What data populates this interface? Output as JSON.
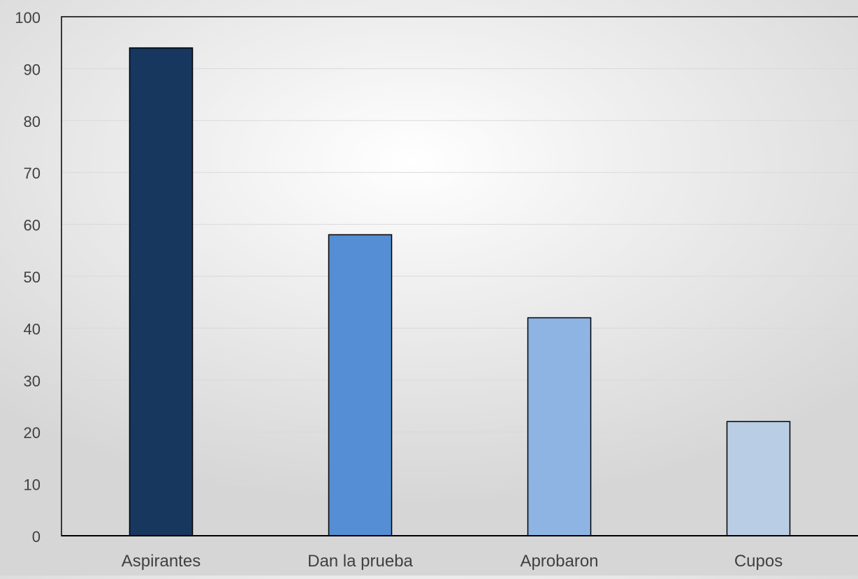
{
  "chart_data": {
    "type": "bar",
    "categories": [
      "Aspirantes",
      "Dan la prueba",
      "Aprobaron",
      "Cupos"
    ],
    "values": [
      94,
      58,
      42,
      22
    ],
    "ylim": [
      0,
      100
    ],
    "yticks": [
      0,
      10,
      20,
      30,
      40,
      50,
      60,
      70,
      80,
      90,
      100
    ],
    "grid": true,
    "legend": "none",
    "colors": [
      "#17375e",
      "#558ed5",
      "#8eb4e3",
      "#b9cde5"
    ],
    "gridline_color": "#d9d9d9",
    "axis_color": "#000000"
  }
}
